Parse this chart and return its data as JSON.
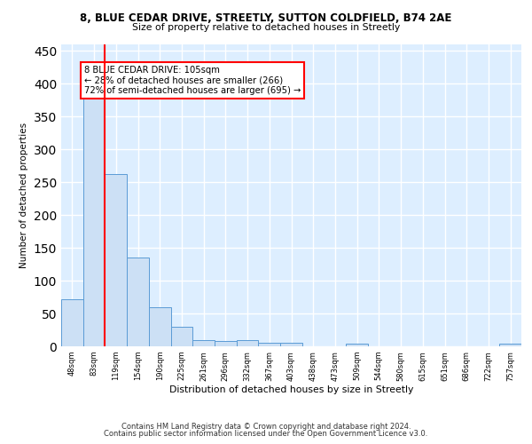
{
  "title1": "8, BLUE CEDAR DRIVE, STREETLY, SUTTON COLDFIELD, B74 2AE",
  "title2": "Size of property relative to detached houses in Streetly",
  "xlabel": "Distribution of detached houses by size in Streetly",
  "ylabel": "Number of detached properties",
  "bin_labels": [
    "48sqm",
    "83sqm",
    "119sqm",
    "154sqm",
    "190sqm",
    "225sqm",
    "261sqm",
    "296sqm",
    "332sqm",
    "367sqm",
    "403sqm",
    "438sqm",
    "473sqm",
    "509sqm",
    "544sqm",
    "580sqm",
    "615sqm",
    "651sqm",
    "686sqm",
    "722sqm",
    "757sqm"
  ],
  "bar_heights": [
    72,
    380,
    262,
    135,
    60,
    30,
    10,
    8,
    10,
    5,
    5,
    0,
    0,
    4,
    0,
    0,
    0,
    0,
    0,
    0,
    4
  ],
  "bar_color": "#cce0f5",
  "bar_edge_color": "#5b9bd5",
  "red_line_x": 1.5,
  "annotation_text": "8 BLUE CEDAR DRIVE: 105sqm\n← 28% of detached houses are smaller (266)\n72% of semi-detached houses are larger (695) →",
  "annotation_box_color": "white",
  "annotation_box_edge_color": "red",
  "footer_line1": "Contains HM Land Registry data © Crown copyright and database right 2024.",
  "footer_line2": "Contains public sector information licensed under the Open Government Licence v3.0.",
  "ylim": [
    0,
    460
  ],
  "background_color": "#ddeeff",
  "grid_color": "white"
}
